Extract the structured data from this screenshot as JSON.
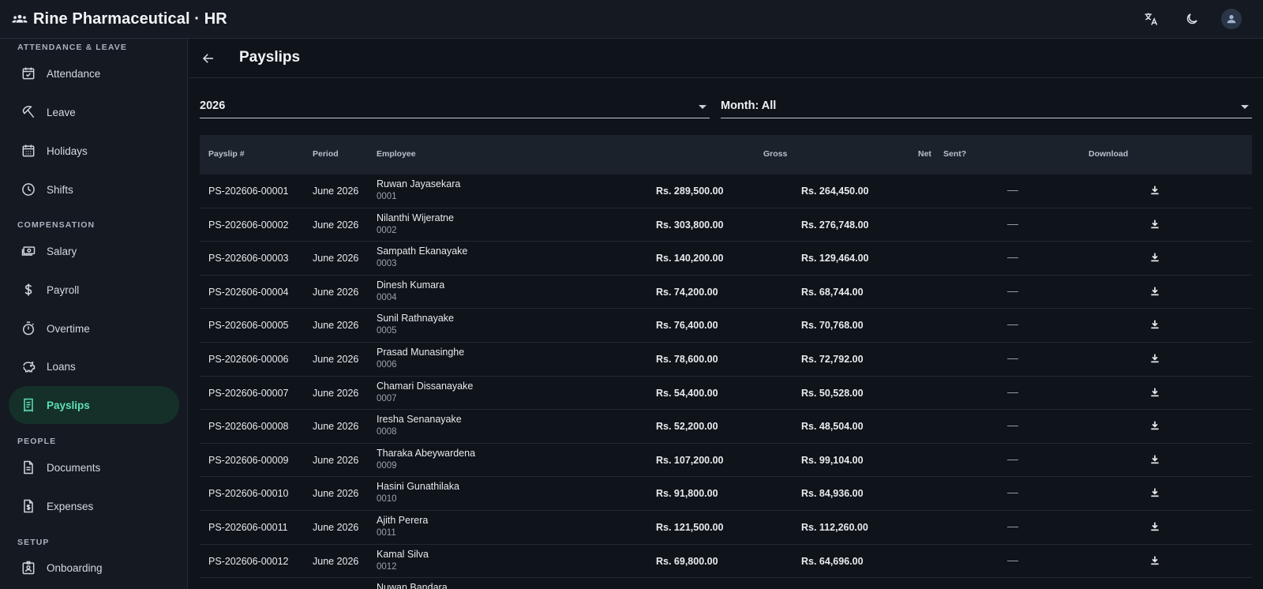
{
  "app": {
    "title": "Rine Pharmaceutical · HR"
  },
  "colors": {
    "accent": "#5ee0b8",
    "active_bg": "#143029",
    "background": "#0f131a",
    "surface": "#151a22"
  },
  "sidebar": {
    "sections": [
      {
        "heading": "ATTENDANCE & LEAVE"
      },
      {
        "heading": "COMPENSATION"
      },
      {
        "heading": "PEOPLE"
      },
      {
        "heading": "SETUP"
      }
    ],
    "items": [
      {
        "label": "Attendance",
        "icon": "calendar-check-icon"
      },
      {
        "label": "Leave",
        "icon": "beach-umbrella-icon"
      },
      {
        "label": "Holidays",
        "icon": "calendar-icon"
      },
      {
        "label": "Shifts",
        "icon": "clock-icon"
      },
      {
        "label": "Salary",
        "icon": "cash-icon"
      },
      {
        "label": "Payroll",
        "icon": "dollar-icon"
      },
      {
        "label": "Overtime",
        "icon": "timer-icon"
      },
      {
        "label": "Loans",
        "icon": "piggy-bank-icon"
      },
      {
        "label": "Payslips",
        "icon": "receipt-icon",
        "active": true
      },
      {
        "label": "Documents",
        "icon": "document-icon"
      },
      {
        "label": "Expenses",
        "icon": "expense-icon"
      },
      {
        "label": "Onboarding",
        "icon": "badge-icon"
      }
    ]
  },
  "page": {
    "title": "Payslips",
    "year_select": "2026",
    "month_select": "Month: All"
  },
  "table": {
    "headers": {
      "slip": "Payslip #",
      "period": "Period",
      "employee": "Employee",
      "gross": "Gross",
      "net": "Net",
      "sent": "Sent?",
      "download": "Download"
    },
    "rows": [
      {
        "slip": "PS-202606-00001",
        "period": "June 2026",
        "name": "Ruwan Jayasekara",
        "id": "0001",
        "gross": "Rs. 289,500.00",
        "net": "Rs. 264,450.00",
        "sent": "—"
      },
      {
        "slip": "PS-202606-00002",
        "period": "June 2026",
        "name": "Nilanthi Wijeratne",
        "id": "0002",
        "gross": "Rs. 303,800.00",
        "net": "Rs. 276,748.00",
        "sent": "—"
      },
      {
        "slip": "PS-202606-00003",
        "period": "June 2026",
        "name": "Sampath Ekanayake",
        "id": "0003",
        "gross": "Rs. 140,200.00",
        "net": "Rs. 129,464.00",
        "sent": "—"
      },
      {
        "slip": "PS-202606-00004",
        "period": "June 2026",
        "name": "Dinesh Kumara",
        "id": "0004",
        "gross": "Rs. 74,200.00",
        "net": "Rs. 68,744.00",
        "sent": "—"
      },
      {
        "slip": "PS-202606-00005",
        "period": "June 2026",
        "name": "Sunil Rathnayake",
        "id": "0005",
        "gross": "Rs. 76,400.00",
        "net": "Rs. 70,768.00",
        "sent": "—"
      },
      {
        "slip": "PS-202606-00006",
        "period": "June 2026",
        "name": "Prasad Munasinghe",
        "id": "0006",
        "gross": "Rs. 78,600.00",
        "net": "Rs. 72,792.00",
        "sent": "—"
      },
      {
        "slip": "PS-202606-00007",
        "period": "June 2026",
        "name": "Chamari Dissanayake",
        "id": "0007",
        "gross": "Rs. 54,400.00",
        "net": "Rs. 50,528.00",
        "sent": "—"
      },
      {
        "slip": "PS-202606-00008",
        "period": "June 2026",
        "name": "Iresha Senanayake",
        "id": "0008",
        "gross": "Rs. 52,200.00",
        "net": "Rs. 48,504.00",
        "sent": "—"
      },
      {
        "slip": "PS-202606-00009",
        "period": "June 2026",
        "name": "Tharaka Abeywardena",
        "id": "0009",
        "gross": "Rs. 107,200.00",
        "net": "Rs. 99,104.00",
        "sent": "—"
      },
      {
        "slip": "PS-202606-00010",
        "period": "June 2026",
        "name": "Hasini Gunathilaka",
        "id": "0010",
        "gross": "Rs. 91,800.00",
        "net": "Rs. 84,936.00",
        "sent": "—"
      },
      {
        "slip": "PS-202606-00011",
        "period": "June 2026",
        "name": "Ajith Perera",
        "id": "0011",
        "gross": "Rs. 121,500.00",
        "net": "Rs. 112,260.00",
        "sent": "—"
      },
      {
        "slip": "PS-202606-00012",
        "period": "June 2026",
        "name": "Kamal Silva",
        "id": "0012",
        "gross": "Rs. 69,800.00",
        "net": "Rs. 64,696.00",
        "sent": "—"
      },
      {
        "slip": "",
        "period": "",
        "name": "Nuwan Bandara",
        "id": "",
        "gross": "",
        "net": "",
        "sent": ""
      }
    ]
  }
}
